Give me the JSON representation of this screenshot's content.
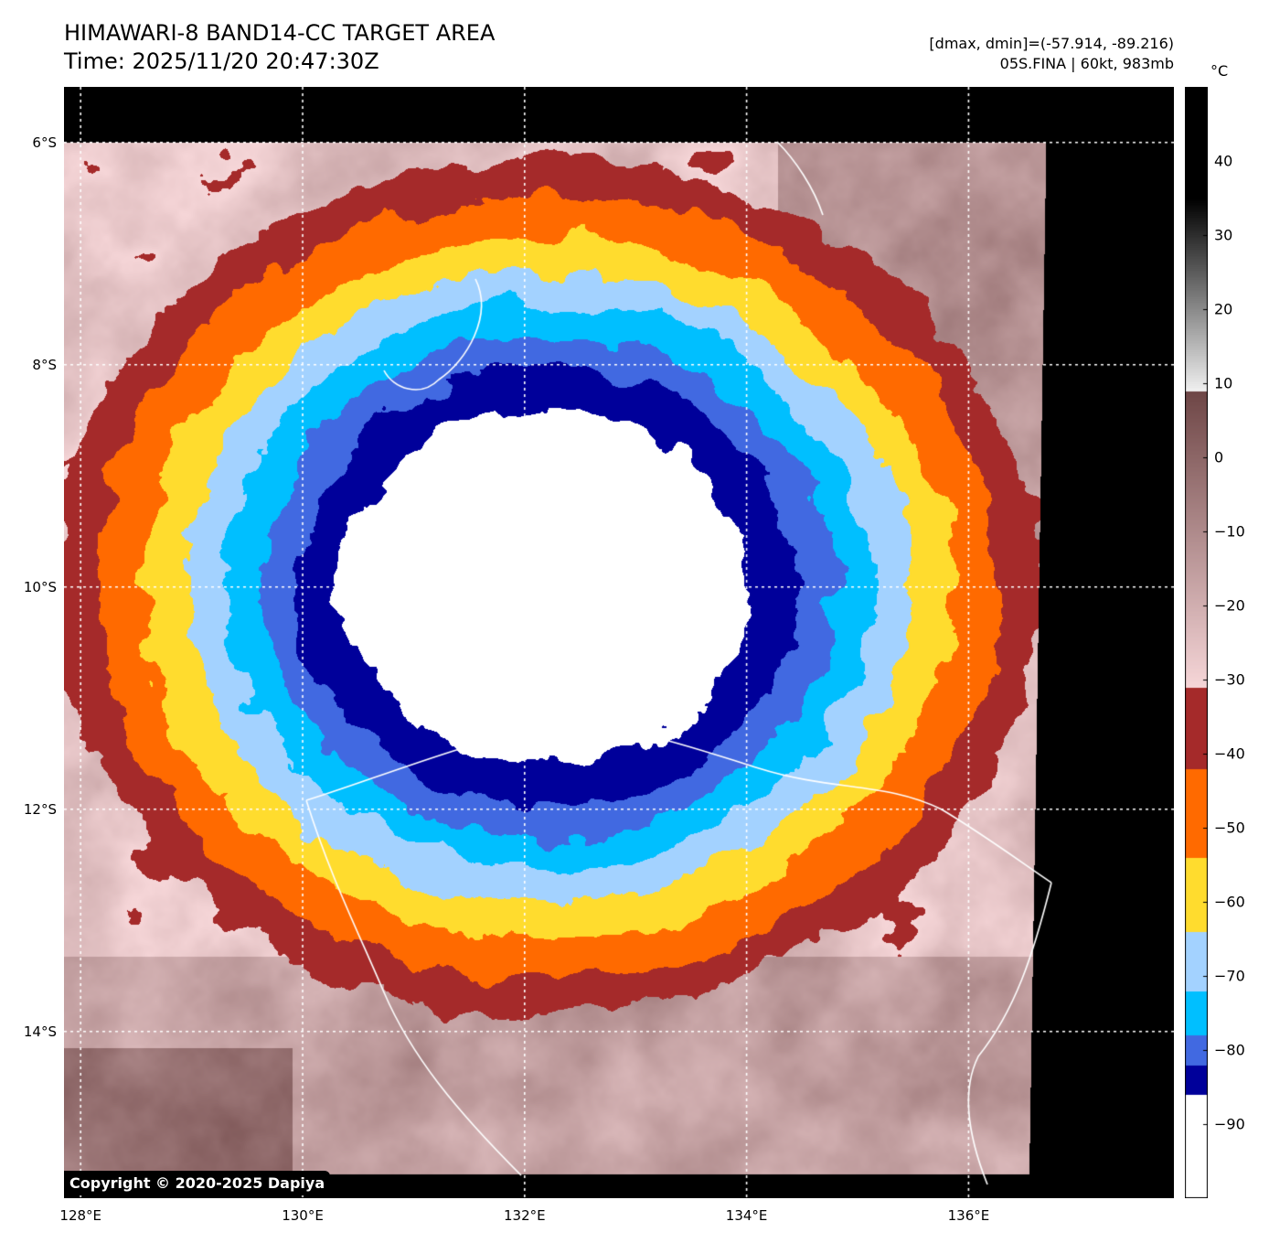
{
  "header": {
    "title_line1": "HIMAWARI-8 BAND14-CC TARGET AREA",
    "title_line2": "Time: 2025/11/20 20:47:30Z",
    "range_text": "[dmax, dmin]=(-57.914, -89.216)",
    "storm_text": "05S.FINA | 60kt, 983mb"
  },
  "colorbar": {
    "unit": "°C",
    "min": -100,
    "max": 50,
    "tick_labels": [
      "40",
      "30",
      "20",
      "10",
      "0",
      "−10",
      "−20",
      "−30",
      "−40",
      "−50",
      "−60",
      "−70",
      "−80",
      "−90"
    ],
    "tick_values": [
      40,
      30,
      20,
      10,
      0,
      -10,
      -20,
      -30,
      -40,
      -50,
      -60,
      -70,
      -80,
      -90
    ],
    "bands": [
      {
        "from": -100,
        "to": -86,
        "color": "#ffffff"
      },
      {
        "from": -86,
        "to": -82,
        "color": "#00009a"
      },
      {
        "from": -82,
        "to": -78,
        "color": "#4169e1"
      },
      {
        "from": -78,
        "to": -72,
        "color": "#00bfff"
      },
      {
        "from": -72,
        "to": -64,
        "color": "#a3d2ff"
      },
      {
        "from": -64,
        "to": -54,
        "color": "#ffdc2e"
      },
      {
        "from": -54,
        "to": -42,
        "color": "#ff6a00"
      },
      {
        "from": -42,
        "to": -31,
        "color": "#a52a2a"
      },
      {
        "from": -31,
        "to": 9,
        "color": "gradient-pink-brown"
      },
      {
        "from": 9,
        "to": 50,
        "color": "gradient-gray"
      }
    ]
  },
  "map": {
    "lat_labels": [
      "6°S",
      "8°S",
      "10°S",
      "12°S",
      "14°S"
    ],
    "lat_values": [
      -6,
      -8,
      -10,
      -12,
      -14
    ],
    "lon_labels": [
      "128°E",
      "130°E",
      "132°E",
      "134°E",
      "136°E"
    ],
    "lon_values": [
      128,
      130,
      132,
      134,
      136
    ],
    "extent": {
      "lon_min": 127.85,
      "lon_max": 137.85,
      "lat_max": -5.5,
      "lat_min": -15.5
    },
    "storm_center": {
      "lat": -10.0,
      "lon": 132.2
    },
    "copyright": "Copyright © 2020-2025 Dapiya"
  }
}
